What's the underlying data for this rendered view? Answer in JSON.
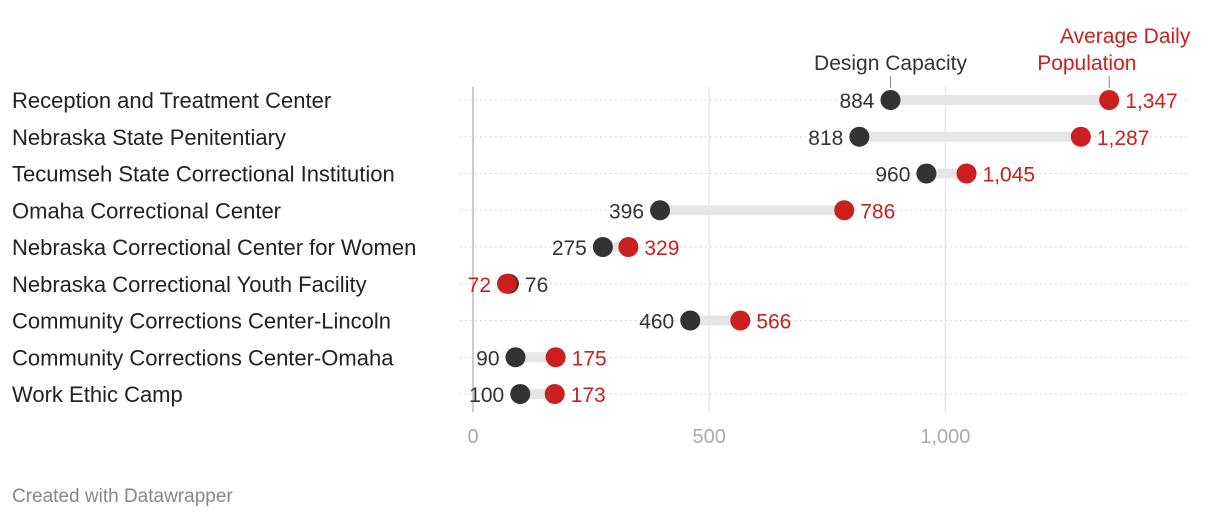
{
  "chart_data": {
    "type": "dot-range",
    "categories": [
      "Reception and Treatment Center",
      "Nebraska State Penitentiary",
      "Tecumseh State Correctional Institution",
      "Omaha Correctional Center",
      "Nebraska Correctional Center for Women",
      "Nebraska Correctional Youth Facility",
      "Community Corrections Center-Lincoln",
      "Community Corrections Center-Omaha",
      "Work Ethic Camp"
    ],
    "series": [
      {
        "name": "Design Capacity",
        "color": "#333333",
        "values": [
          884,
          818,
          960,
          396,
          275,
          76,
          460,
          90,
          100
        ],
        "labels": [
          "884",
          "818",
          "960",
          "396",
          "275",
          "76",
          "460",
          "90",
          "100"
        ]
      },
      {
        "name": "Average Daily Population",
        "color": "#cc1f1f",
        "values": [
          1347,
          1287,
          1045,
          786,
          329,
          72,
          566,
          175,
          173
        ],
        "labels": [
          "1,347",
          "1,287",
          "1,045",
          "786",
          "329",
          "72",
          "566",
          "175",
          "173"
        ]
      }
    ],
    "x_ticks": [
      0,
      500,
      1000
    ],
    "x_tick_labels": [
      "0",
      "500",
      "1,000"
    ],
    "xlim": [
      0,
      1515
    ],
    "grid": true,
    "legend": {
      "design": "Design Capacity",
      "population_line1": "Average Daily",
      "population_line2": "Population"
    }
  },
  "footer": "Created with Datawrapper"
}
